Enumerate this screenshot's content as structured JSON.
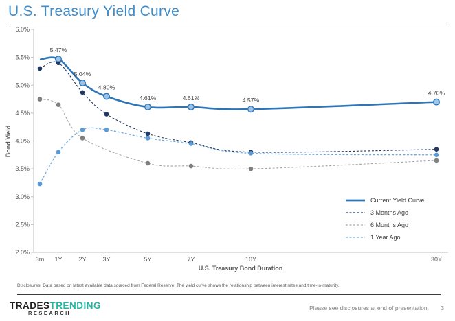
{
  "slide": {
    "title": "U.S. Treasury Yield Curve"
  },
  "footer": {
    "disclosure": "Disclosures: Data based on latest available data sourced from Federal Reserve. The yield curve shows the relationship between interest rates and time-to-maturity.",
    "note": "Please see disclosures at end of presentation.",
    "page_number": "3",
    "logo": {
      "part1": "TRADES",
      "part2": "TRENDING",
      "part3": "RESEARCH"
    }
  },
  "colors": {
    "title_blue": "#3E8CC9",
    "logo_teal": "#1FB8A2",
    "axis_gray": "#BFBFBF",
    "tick_text_gray": "#595959",
    "data_label_gray": "#3f3f3f"
  },
  "chart_data": {
    "type": "line",
    "title": "",
    "xlabel": "U.S. Treasury Bond Duration",
    "ylabel": "Bond Yield",
    "categories": [
      "3m",
      "1Y",
      "2Y",
      "3Y",
      "5Y",
      "7Y",
      "10Y",
      "30Y"
    ],
    "ylim": [
      2.0,
      6.0
    ],
    "ytick_step": 0.5,
    "ytick_format": "percent-1-decimal",
    "grid": false,
    "legend_position": "inside-bottom-right",
    "series": [
      {
        "name": "Current Yield Curve",
        "style": "solid",
        "color": "#2E75B6",
        "marker_fill": "#9DC3E6",
        "marker_stroke": "#2E75B6",
        "values": [
          5.46,
          5.47,
          5.04,
          4.8,
          4.61,
          4.61,
          4.57,
          4.7
        ],
        "labels": [
          null,
          "5.47%",
          "5.04%",
          "4.80%",
          "4.61%",
          "4.61%",
          "4.57%",
          "4.70%"
        ]
      },
      {
        "name": "3 Months Ago",
        "style": "dashed",
        "color": "#1F3864",
        "marker_fill": "#1F3864",
        "values": [
          5.3,
          5.4,
          4.87,
          4.48,
          4.13,
          3.97,
          3.8,
          3.85
        ]
      },
      {
        "name": "6 Months Ago",
        "style": "dashed",
        "color": "#A6A6A6",
        "marker_fill": "#7F7F7F",
        "values": [
          4.75,
          4.65,
          4.05,
          null,
          3.6,
          3.55,
          3.5,
          3.65
        ]
      },
      {
        "name": "1 Year Ago",
        "style": "dashed",
        "color": "#6FA8DC",
        "marker_fill": "#5B9BD5",
        "values": [
          3.23,
          3.8,
          4.2,
          4.2,
          4.05,
          3.95,
          3.78,
          3.75
        ]
      }
    ]
  }
}
